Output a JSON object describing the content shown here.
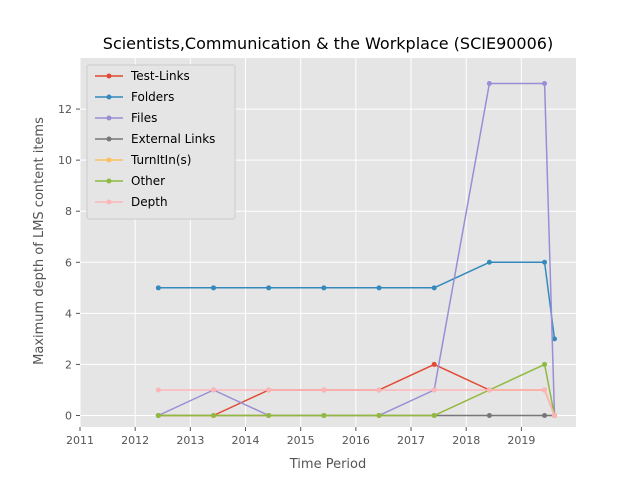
{
  "chart_data": {
    "type": "line",
    "title": "Scientists,Communication & the Workplace (SCIE90006)",
    "xlabel": "Time Period",
    "ylabel": "Maximum depth of LMS content items",
    "xlim": [
      2011,
      2019.99
    ],
    "ylim": [
      -0.45,
      14.0
    ],
    "xticks": [
      2011,
      2012,
      2013,
      2014,
      2015,
      2016,
      2017,
      2018,
      2019
    ],
    "xtick_labels": [
      "2011",
      "2012",
      "2013",
      "2014",
      "2015",
      "2016",
      "2017",
      "2018",
      "2019"
    ],
    "yticks": [
      0,
      2,
      4,
      6,
      8,
      10,
      12
    ],
    "ytick_labels": [
      "0",
      "2",
      "4",
      "6",
      "8",
      "10",
      "12"
    ],
    "grid": true,
    "legend_position": "top-left",
    "x": [
      2012.42,
      2013.42,
      2014.42,
      2015.42,
      2016.42,
      2017.42,
      2018.42,
      2019.42,
      2019.6
    ],
    "series": [
      {
        "name": "Test-Links",
        "color": "#E24A33",
        "values": [
          0,
          0,
          1,
          1,
          1,
          2,
          1,
          1,
          0
        ]
      },
      {
        "name": "Folders",
        "color": "#348ABD",
        "values": [
          5,
          5,
          5,
          5,
          5,
          5,
          6,
          6,
          3
        ]
      },
      {
        "name": "Files",
        "color": "#988ED5",
        "values": [
          0,
          1,
          0,
          0,
          0,
          1,
          13,
          13,
          0
        ]
      },
      {
        "name": "External Links",
        "color": "#777777",
        "values": [
          0,
          0,
          0,
          0,
          0,
          0,
          0,
          0,
          0
        ]
      },
      {
        "name": "TurnItIn(s)",
        "color": "#FBC15E",
        "values": [
          0,
          0,
          0,
          0,
          0,
          0,
          1,
          1,
          0
        ]
      },
      {
        "name": "Other",
        "color": "#8EBA42",
        "values": [
          0,
          0,
          0,
          0,
          0,
          0,
          1,
          2,
          0
        ]
      },
      {
        "name": "Depth",
        "color": "#FFB5B8",
        "values": [
          1,
          1,
          1,
          1,
          1,
          1,
          1,
          1,
          0
        ]
      }
    ]
  }
}
